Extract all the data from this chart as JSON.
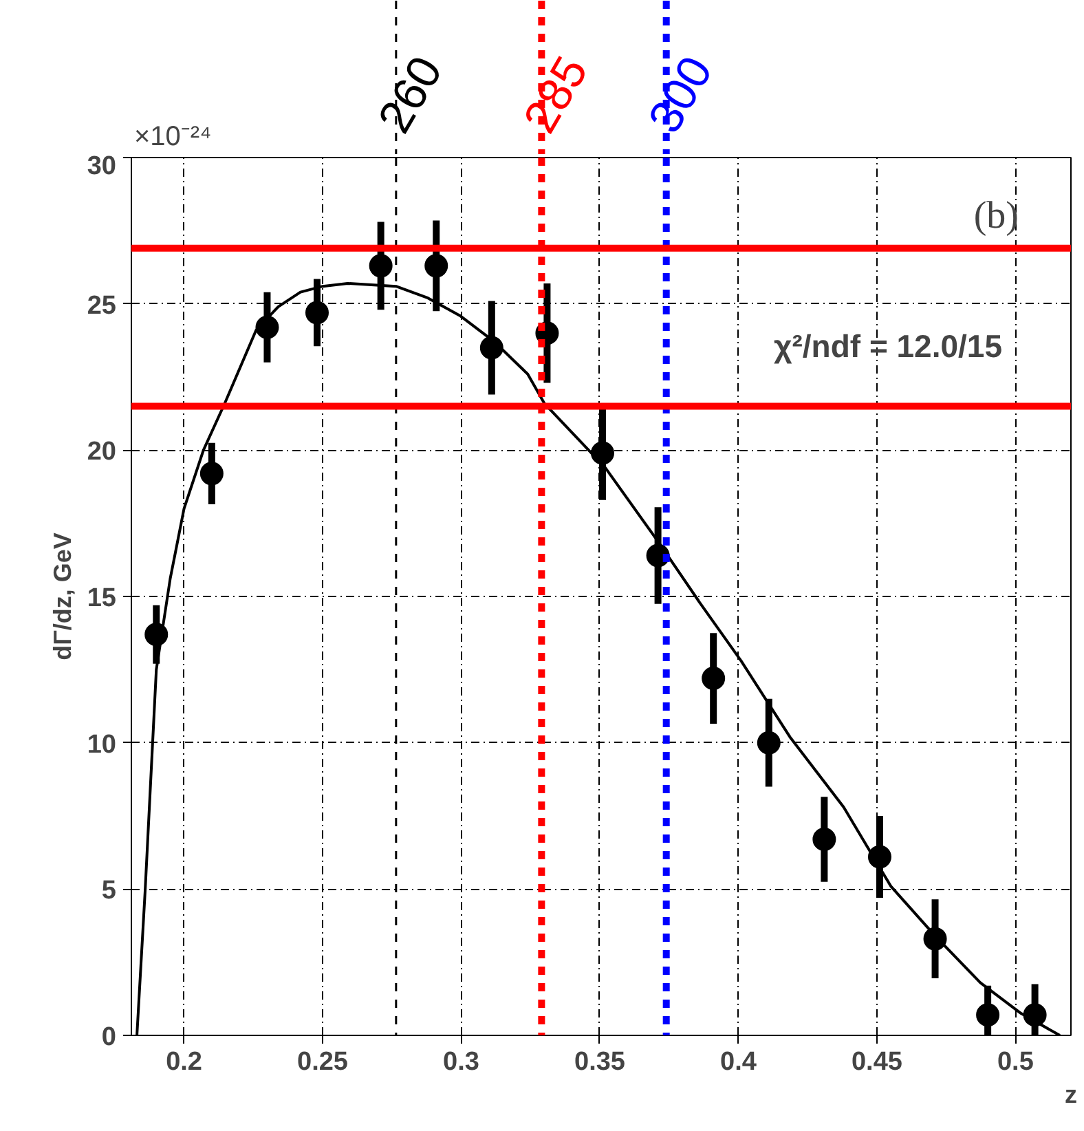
{
  "chart_data": {
    "type": "scatter",
    "xlabel": "z",
    "ylabel": "dΓ/dz, GeV",
    "annotations": [
      "×10⁻²⁴",
      "(b)",
      "χ²/ndf = 12.0/15",
      {
        "text": "260",
        "x": 0.2765,
        "y": 30
      },
      {
        "text": "285",
        "x": 0.329,
        "y": 30
      },
      {
        "text": "300",
        "x": 0.374,
        "y": 30
      }
    ],
    "xlim": [
      0.181,
      0.52
    ],
    "ylim": [
      0,
      30
    ],
    "xticks": [
      0.2,
      0.25,
      0.3,
      0.35,
      0.4,
      0.45,
      0.5
    ],
    "yticks": [
      0,
      5,
      10,
      15,
      20,
      25,
      30
    ],
    "grid": true,
    "series": [
      {
        "color": "#000000",
        "marker": "circle",
        "x": [
          0.19,
          0.21,
          0.23,
          0.248,
          0.271,
          0.291,
          0.311,
          0.331,
          0.351,
          0.371,
          0.391,
          0.411,
          0.431,
          0.451,
          0.471,
          0.49,
          0.507
        ],
        "values": [
          13.7,
          19.2,
          24.2,
          24.7,
          26.3,
          26.3,
          23.5,
          24.0,
          19.9,
          16.4,
          12.2,
          10.0,
          6.7,
          6.1,
          3.3,
          0.7,
          0.7
        ],
        "errors": [
          1.0,
          1.05,
          1.2,
          1.15,
          1.5,
          1.55,
          1.6,
          1.7,
          1.6,
          1.65,
          1.55,
          1.5,
          1.45,
          1.4,
          1.35,
          1.0,
          1.05
        ]
      },
      {
        "type": "line",
        "color": "#000000",
        "x": [
          0.183,
          0.186,
          0.19,
          0.195,
          0.2,
          0.207,
          0.2147,
          0.226,
          0.234,
          0.242,
          0.25,
          0.259,
          0.2765,
          0.288,
          0.2995,
          0.312,
          0.324,
          0.33,
          0.341,
          0.352,
          0.3716,
          0.386,
          0.401,
          0.4186,
          0.438,
          0.455,
          0.471,
          0.4873,
          0.502,
          0.516
        ],
        "values": [
          0,
          5,
          12.5,
          15.6,
          18.0,
          20.0,
          21.6,
          24.1,
          24.9,
          25.4,
          25.6,
          25.7,
          25.6,
          25.2,
          24.6,
          23.7,
          22.6,
          21.6,
          20.5,
          19.4,
          16.8,
          14.8,
          12.8,
          10.2,
          7.8,
          5.1,
          3.4,
          1.8,
          0.75,
          0
        ]
      }
    ],
    "ref_lines": [
      {
        "axis": "x",
        "value": 0.2765,
        "color": "#000000",
        "line_style": "dashed"
      },
      {
        "axis": "x",
        "value": 0.329,
        "color": "#ff0000",
        "line_style": "dashed"
      },
      {
        "axis": "x",
        "value": 0.374,
        "color": "#0000ff",
        "line_style": "dashed"
      },
      {
        "axis": "y",
        "value": 26.9,
        "color": "#ff0000",
        "line_style": "solid"
      },
      {
        "axis": "y",
        "value": 21.5,
        "color": "#ff0000",
        "line_style": "solid"
      }
    ]
  }
}
